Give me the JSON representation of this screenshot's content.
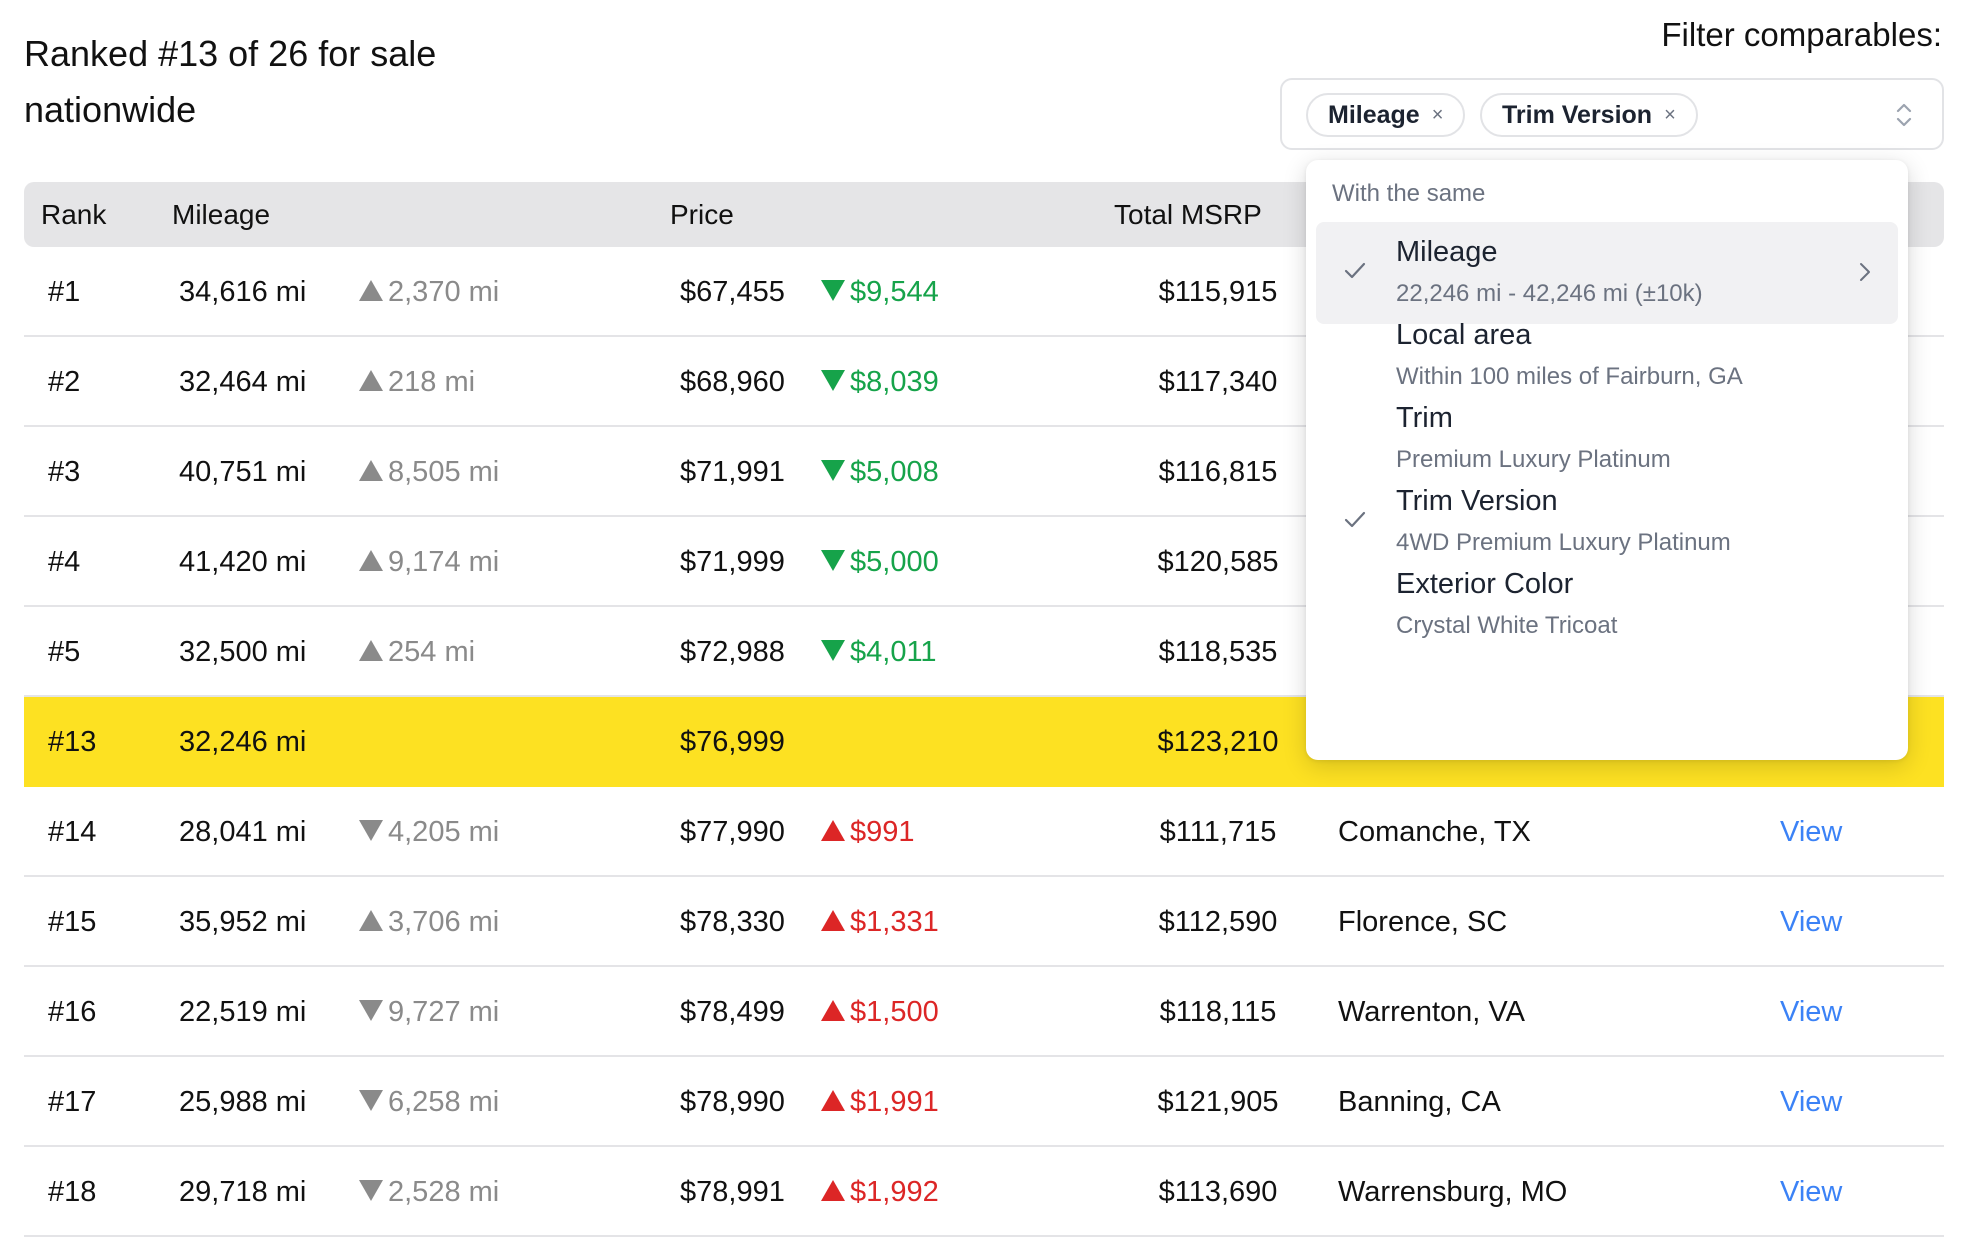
{
  "header": {
    "title": "Ranked #13 of 26 for sale nationwide",
    "filter_label": "Filter comparables:"
  },
  "filter": {
    "chips": [
      {
        "label": "Mileage",
        "remove": "×"
      },
      {
        "label": "Trim Version",
        "remove": "×"
      }
    ]
  },
  "table": {
    "columns": [
      "Rank",
      "Mileage",
      "Price",
      "Total MSRP"
    ],
    "rows": [
      {
        "rank": "#1",
        "mileage": "34,616 mi",
        "mileage_diff": "2,370 mi",
        "mileage_dir": "up",
        "price": "$67,455",
        "price_diff": "$9,544",
        "price_dir": "down",
        "msrp": "$115,915",
        "location": "",
        "action": ""
      },
      {
        "rank": "#2",
        "mileage": "32,464 mi",
        "mileage_diff": "218 mi",
        "mileage_dir": "up",
        "price": "$68,960",
        "price_diff": "$8,039",
        "price_dir": "down",
        "msrp": "$117,340",
        "location": "",
        "action": ""
      },
      {
        "rank": "#3",
        "mileage": "40,751 mi",
        "mileage_diff": "8,505 mi",
        "mileage_dir": "up",
        "price": "$71,991",
        "price_diff": "$5,008",
        "price_dir": "down",
        "msrp": "$116,815",
        "location": "",
        "action": ""
      },
      {
        "rank": "#4",
        "mileage": "41,420 mi",
        "mileage_diff": "9,174 mi",
        "mileage_dir": "up",
        "price": "$71,999",
        "price_diff": "$5,000",
        "price_dir": "down",
        "msrp": "$120,585",
        "location": "",
        "action": ""
      },
      {
        "rank": "#5",
        "mileage": "32,500 mi",
        "mileage_diff": "254 mi",
        "mileage_dir": "up",
        "price": "$72,988",
        "price_diff": "$4,011",
        "price_dir": "down",
        "msrp": "$118,535",
        "location": "",
        "action": ""
      },
      {
        "rank": "#13",
        "mileage": "32,246 mi",
        "mileage_diff": "",
        "mileage_dir": "",
        "price": "$76,999",
        "price_diff": "",
        "price_dir": "",
        "msrp": "$123,210",
        "location": "",
        "action": "",
        "highlight": true
      },
      {
        "rank": "#14",
        "mileage": "28,041 mi",
        "mileage_diff": "4,205 mi",
        "mileage_dir": "down",
        "price": "$77,990",
        "price_diff": "$991",
        "price_dir": "up",
        "msrp": "$111,715",
        "location": "Comanche, TX",
        "action": "View"
      },
      {
        "rank": "#15",
        "mileage": "35,952 mi",
        "mileage_diff": "3,706 mi",
        "mileage_dir": "up",
        "price": "$78,330",
        "price_diff": "$1,331",
        "price_dir": "up",
        "msrp": "$112,590",
        "location": "Florence, SC",
        "action": "View"
      },
      {
        "rank": "#16",
        "mileage": "22,519 mi",
        "mileage_diff": "9,727 mi",
        "mileage_dir": "down",
        "price": "$78,499",
        "price_diff": "$1,500",
        "price_dir": "up",
        "msrp": "$118,115",
        "location": "Warrenton, VA",
        "action": "View"
      },
      {
        "rank": "#17",
        "mileage": "25,988 mi",
        "mileage_diff": "6,258 mi",
        "mileage_dir": "down",
        "price": "$78,990",
        "price_diff": "$1,991",
        "price_dir": "up",
        "msrp": "$121,905",
        "location": "Banning, CA",
        "action": "View"
      },
      {
        "rank": "#18",
        "mileage": "29,718 mi",
        "mileage_diff": "2,528 mi",
        "mileage_dir": "down",
        "price": "$78,991",
        "price_diff": "$1,992",
        "price_dir": "up",
        "msrp": "$113,690",
        "location": "Warrensburg, MO",
        "action": "View"
      }
    ]
  },
  "dropdown": {
    "heading": "With the same",
    "items": [
      {
        "title": "Mileage",
        "subtitle": "22,246 mi - 42,246 mi (±10k)",
        "checked": true,
        "active": true,
        "has_submenu": true
      },
      {
        "title": "Local area",
        "subtitle": "Within 100 miles of Fairburn, GA",
        "checked": false,
        "active": false,
        "has_submenu": false
      },
      {
        "title": "Trim",
        "subtitle": "Premium Luxury Platinum",
        "checked": false,
        "active": false,
        "has_submenu": false
      },
      {
        "title": "Trim Version",
        "subtitle": "4WD Premium Luxury Platinum",
        "checked": true,
        "active": false,
        "has_submenu": false
      },
      {
        "title": "Exterior Color",
        "subtitle": "Crystal White Tricoat",
        "checked": false,
        "active": false,
        "has_submenu": false
      }
    ]
  },
  "colors": {
    "highlight_row": "#fde122",
    "price_down": "#16a34a",
    "price_up": "#dc2626",
    "mileage_diff": "#8a8a8a",
    "link": "#3b82f6",
    "header_bg": "#e5e5e7"
  },
  "icons": {
    "chip_remove": "close-icon",
    "select": "chevron-up-down-icon",
    "check": "check-icon",
    "submenu": "chevron-right-icon",
    "increase": "triangle-up-icon",
    "decrease": "triangle-down-icon"
  }
}
